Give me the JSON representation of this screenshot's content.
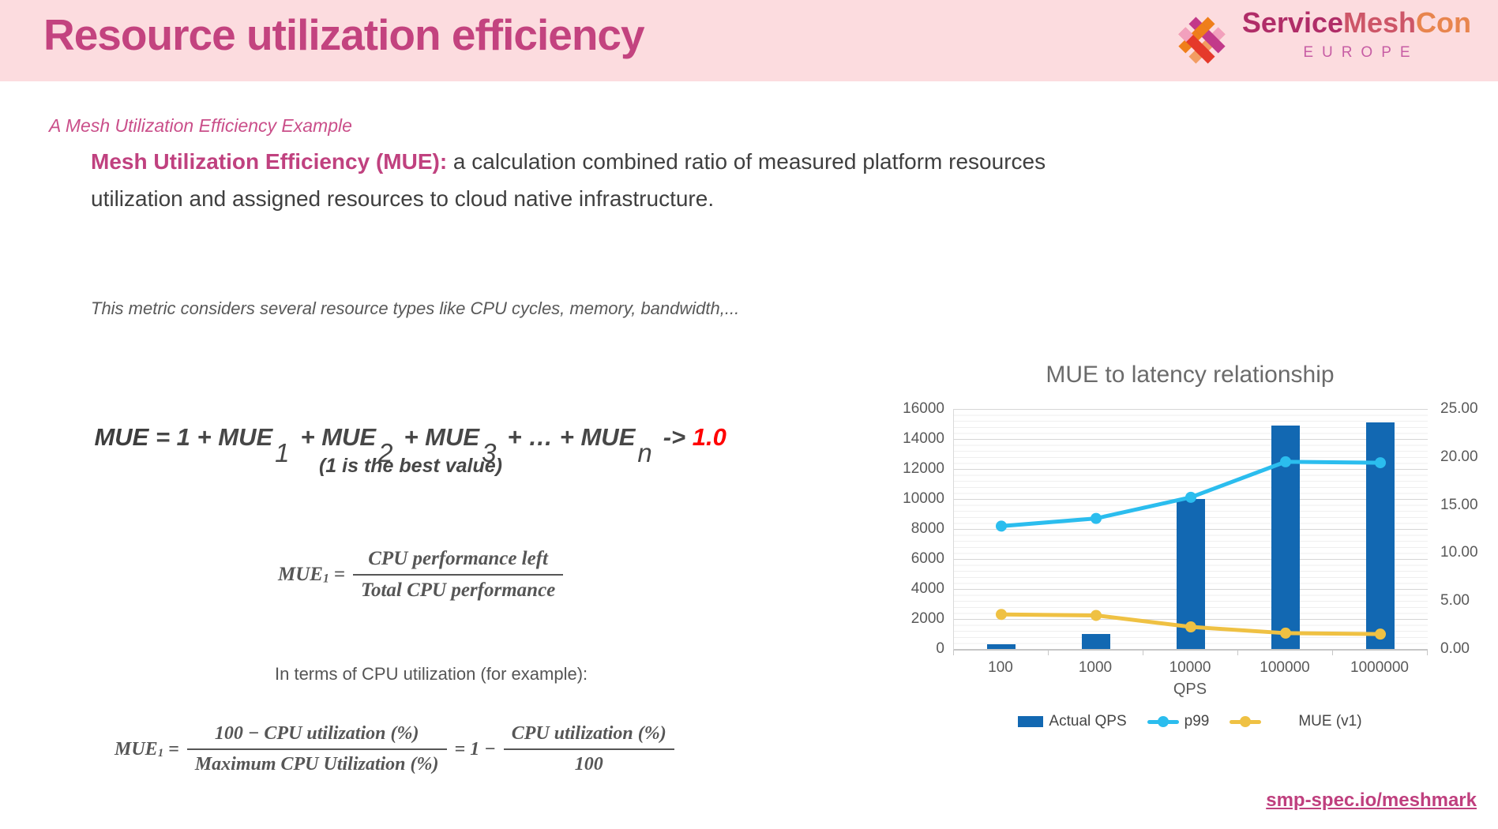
{
  "header": {
    "title": "Resource utilization efficiency",
    "logo": {
      "brand_service": "Service",
      "brand_mesh": "Mesh",
      "brand_con": "Con",
      "region": "EUROPE"
    }
  },
  "subtitle": "A Mesh Utilization Efficiency Example",
  "lead": {
    "highlight": "Mesh Utilization Efficiency (MUE):",
    "rest_line1": " a calculation combined ratio of measured platform resources",
    "line2": "utilization and assigned resources to cloud native infrastructure."
  },
  "note": "This metric considers several resource types like CPU cycles, memory, bandwidth,...",
  "mue_formula": {
    "head": "MUE",
    "seg1": " = 1 + MUE",
    "sub1": "1",
    "seg2": "+ MUE",
    "sub2": "2",
    "seg3": "+ MUE",
    "sub3": "3",
    "seg4": "+ … + MUE",
    "sub4": "n",
    "arrow": "-> ",
    "target": "1.0",
    "best_note": "(1 is the best value)"
  },
  "fraction1": {
    "lhs": "MUE",
    "lhs_sub": "1",
    "eq": "=",
    "numerator": "CPU performance left",
    "denominator": "Total CPU performance"
  },
  "terms_label": "In terms of CPU utilization (for example):",
  "fraction2": {
    "lhs": "MUE",
    "lhs_sub": "1",
    "eq": "=",
    "numerator1": "100 − CPU utilization (%)",
    "denominator1": "Maximum CPU Utilization (%)",
    "mid": "= 1 −",
    "numerator2": "CPU utilization (%)",
    "denominator2": "100"
  },
  "chart_data": {
    "type": "bar+line combo",
    "title": "MUE to latency relationship",
    "xlabel": "QPS",
    "categories": [
      "100",
      "1000",
      "10000",
      "100000",
      "1000000"
    ],
    "left_axis": {
      "min": 0,
      "max": 16000,
      "step": 2000,
      "ticks": [
        "16000",
        "14000",
        "12000",
        "10000",
        "8000",
        "6000",
        "4000",
        "2000",
        "0"
      ]
    },
    "right_axis": {
      "min": 0,
      "max": 25,
      "step": 5,
      "ticks": [
        "25.00",
        "20.00",
        "15.00",
        "10.00",
        "5.00",
        "0.00"
      ]
    },
    "series": [
      {
        "name": "Actual QPS",
        "type": "bar",
        "axis": "left",
        "color": "#1268b2",
        "values": [
          300,
          1000,
          10000,
          14900,
          15100
        ]
      },
      {
        "name": "p99",
        "type": "line",
        "axis": "right",
        "color": "#2bbdee",
        "values": [
          12.8,
          13.6,
          15.8,
          19.5,
          19.4
        ]
      },
      {
        "name": "MUE (v1)",
        "type": "line",
        "axis": "right",
        "color": "#efc143",
        "values": [
          3.6,
          3.5,
          2.3,
          1.65,
          1.55
        ]
      }
    ],
    "legend_position": "bottom",
    "grid": "horizontal major+minor"
  },
  "footer": {
    "link": "smp-spec.io/meshmark"
  }
}
